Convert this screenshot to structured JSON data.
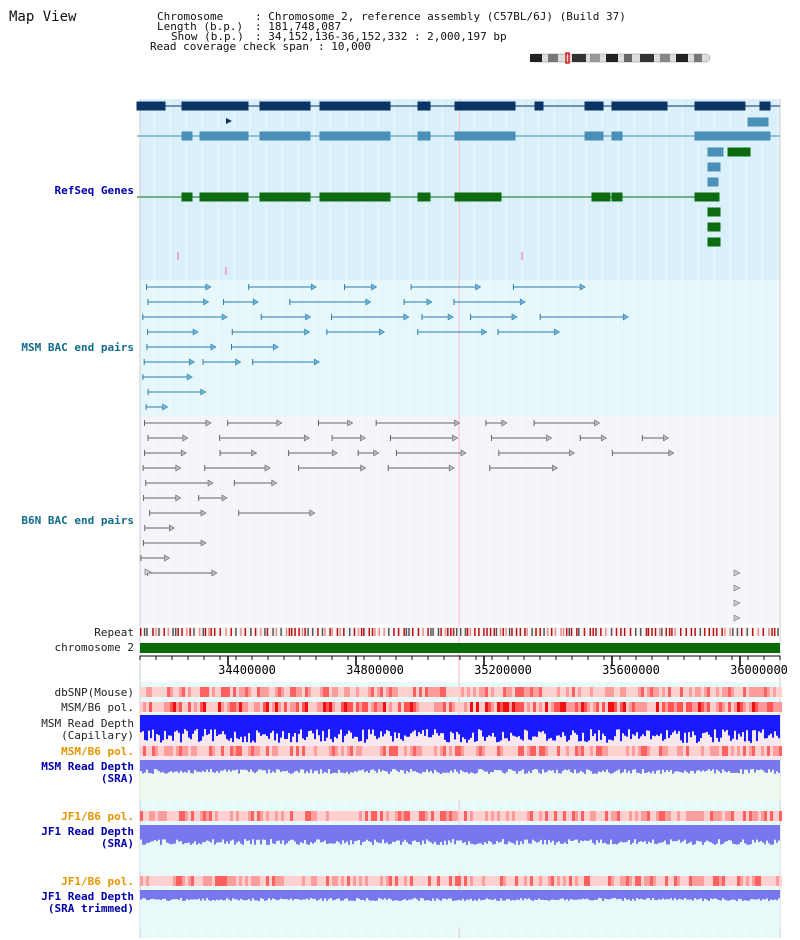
{
  "page": {
    "title": "Map View"
  },
  "header": {
    "chromosome_key": "Chromosome",
    "chromosome_value": ": Chromosome 2, reference assembly (C57BL/6J) (Build 37)",
    "length_key": "Length (b.p.)",
    "length_value": ": 181,748,087",
    "show_key": "Show (b.p.)",
    "show_value": ": 34,152,136-36,152,332 : 2,000,197 bp",
    "coverage_key": "Read coverage check span",
    "coverage_value": ": 10,000"
  },
  "tracks": {
    "refseq": "RefSeq Genes",
    "msm_bac": "MSM BAC end pairs",
    "b6n_bac": "B6N BAC end pairs",
    "repeat": "Repeat",
    "chromosome": "chromosome 2",
    "dbsnp": "dbSNP(Mouse)",
    "msm_b6_pol": "MSM/B6 pol.",
    "msm_depth_cap_1": "MSM Read Depth",
    "msm_depth_cap_2": "(Capillary)",
    "msm_b6_pol2": "MSM/B6 pol.",
    "msm_depth_sra_1": "MSM Read Depth",
    "msm_depth_sra_2": "(SRA)",
    "jf1_b6_pol": "JF1/B6 pol.",
    "jf1_depth_1": "JF1 Read Depth",
    "jf1_depth_2": "(SRA)",
    "jf1_b6_pol2": "JF1/B6 pol.",
    "jf1_trim_1": "JF1 Read Depth",
    "jf1_trim_2": "(SRA trimmed)"
  },
  "axis": {
    "ticks": [
      "34400000",
      "34800000",
      "35200000",
      "35600000",
      "36000000"
    ]
  },
  "colors": {
    "refseq_bg": "#d9eff9",
    "msm_bg": "#e6f7fb",
    "b6n_bg": "#f4f4fa",
    "lower_bg": "#e6fafa",
    "gene_dark": "#0a3366",
    "gene_mid": "#4a8fb8",
    "gene_green": "#0b6b10",
    "bac_msm": "#2a7ba8",
    "bac_b6n": "#666666",
    "chrom_green": "#0b6b0b",
    "depth_blue": "#1a1aff",
    "depth_light": "#7777ee",
    "label_blue": "#0000aa",
    "label_teal": "#136c8c",
    "label_orange": "#e69500"
  }
}
